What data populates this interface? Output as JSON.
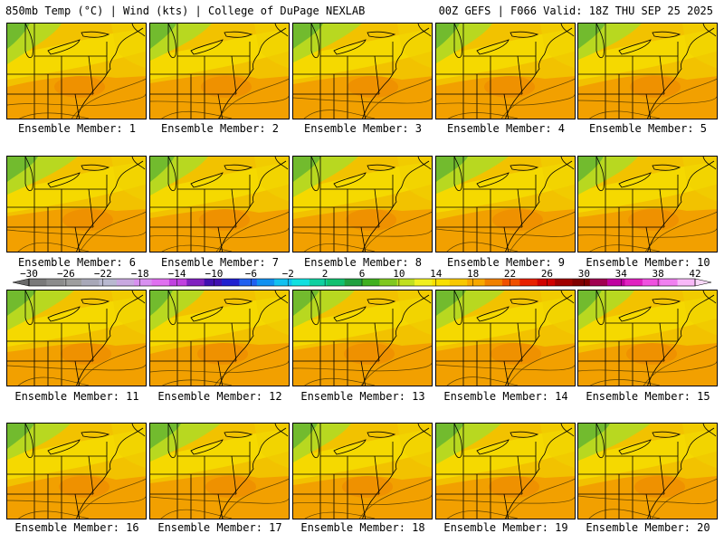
{
  "header": {
    "left": "850mb Temp (°C) | Wind (kts) | College of DuPage NEXLAB",
    "right": "00Z GEFS | F066 Valid: 18Z THU SEP 25 2025"
  },
  "panels": [
    {
      "member": 1,
      "caption": "Ensemble Member: 1"
    },
    {
      "member": 2,
      "caption": "Ensemble Member: 2"
    },
    {
      "member": 3,
      "caption": "Ensemble Member: 3"
    },
    {
      "member": 4,
      "caption": "Ensemble Member: 4"
    },
    {
      "member": 5,
      "caption": "Ensemble Member: 5"
    },
    {
      "member": 6,
      "caption": "Ensemble Member: 6"
    },
    {
      "member": 7,
      "caption": "Ensemble Member: 7"
    },
    {
      "member": 8,
      "caption": "Ensemble Member: 8"
    },
    {
      "member": 9,
      "caption": "Ensemble Member: 9"
    },
    {
      "member": 10,
      "caption": "Ensemble Member: 10"
    },
    {
      "member": 11,
      "caption": "Ensemble Member: 11"
    },
    {
      "member": 12,
      "caption": "Ensemble Member: 12"
    },
    {
      "member": 13,
      "caption": "Ensemble Member: 13"
    },
    {
      "member": 14,
      "caption": "Ensemble Member: 14"
    },
    {
      "member": 15,
      "caption": "Ensemble Member: 15"
    },
    {
      "member": 16,
      "caption": "Ensemble Member: 16"
    },
    {
      "member": 17,
      "caption": "Ensemble Member: 17"
    },
    {
      "member": 18,
      "caption": "Ensemble Member: 18"
    },
    {
      "member": 19,
      "caption": "Ensemble Member: 19"
    },
    {
      "member": 20,
      "caption": "Ensemble Member: 20"
    }
  ],
  "colorbar": {
    "labels": [
      "−30",
      "−26",
      "−22",
      "−18",
      "−14",
      "−10",
      "−6",
      "−2",
      "2",
      "6",
      "10",
      "14",
      "18",
      "22",
      "26",
      "30",
      "34",
      "38",
      "42"
    ],
    "colors": [
      "#7a7a7a",
      "#8c8c8c",
      "#9e9e9e",
      "#a8a8b8",
      "#b8b8d0",
      "#c8a8e0",
      "#d890f0",
      "#e070f0",
      "#c040e0",
      "#8020c0",
      "#4010b0",
      "#2020d0",
      "#2060f0",
      "#1090f0",
      "#10c0f0",
      "#10e0e0",
      "#10d0a0",
      "#10c070",
      "#20a040",
      "#40b020",
      "#80c820",
      "#c0e020",
      "#f0f020",
      "#f8e000",
      "#f8c800",
      "#f8a800",
      "#f08000",
      "#f05000",
      "#e82000",
      "#d00000",
      "#a00000",
      "#800000",
      "#a00050",
      "#c000a0",
      "#e020c0",
      "#f050e0",
      "#f080f0",
      "#f8b8f8"
    ]
  },
  "colors": {
    "base": "#f2c200",
    "warm": "#f29a00",
    "yellow": "#f5e000",
    "green": "#b8d820",
    "darkgreen": "#6ab830",
    "map_lines": "#000000"
  }
}
